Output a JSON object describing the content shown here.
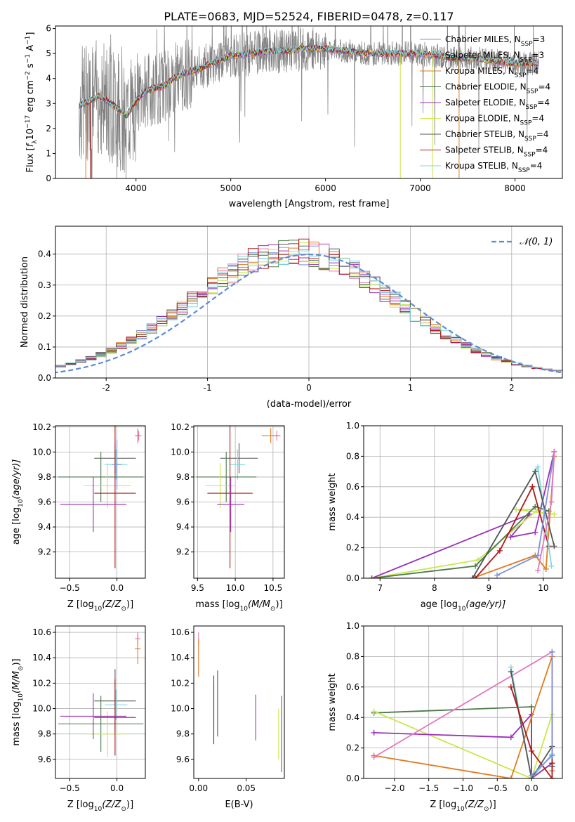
{
  "figure_title": "PLATE=0683, MJD=52524, FIBERID=0478, z=0.117",
  "colors": {
    "chabrier_miles": "#7f8fdf",
    "salpeter_miles": "#e377c2",
    "kroupa_miles": "#e07b1f",
    "chabrier_elodie": "#4a7a4a",
    "salpeter_elodie": "#9b30b8",
    "kroupa_elodie": "#c8e84a",
    "chabrier_stelib": "#555555",
    "salpeter_stelib": "#b01818",
    "kroupa_stelib": "#7fd8e0",
    "data": "#808080",
    "gauss": "#5b8bd8"
  },
  "chart_data": [
    {
      "id": "spectrum",
      "type": "line",
      "xlabel": "wavelength [Angstrom, rest frame]",
      "ylabel_main": "Flux [",
      "ylabel_f": "f",
      "ylabel_lambda": "λ",
      "ylabel_rest": "10",
      "ylabel_exp": "−17",
      "ylabel_units": " erg cm",
      "ylabel_exp2": "−2",
      "ylabel_s": " s",
      "ylabel_exp3": "−1",
      "ylabel_a": " A",
      "ylabel_exp4": "−1",
      "ylabel_end": "]",
      "xlim": [
        3150,
        8500
      ],
      "ylim": [
        0,
        6.1
      ],
      "xticks": [
        4000,
        5000,
        6000,
        7000,
        8000
      ],
      "yticks": [
        0,
        1,
        2,
        3,
        4,
        5,
        6
      ],
      "legend_position": "right",
      "legend": [
        {
          "name": "Chabrier MILES, N",
          "sub": "SSP",
          "suffix": "=3",
          "color_key": "chabrier_miles"
        },
        {
          "name": "Salpeter MILES, N",
          "sub": "SSP",
          "suffix": "=3",
          "color_key": "salpeter_miles"
        },
        {
          "name": "Kroupa MILES, N",
          "sub": "SSP",
          "suffix": "=4",
          "color_key": "kroupa_miles"
        },
        {
          "name": "Chabrier ELODIE, N",
          "sub": "SSP",
          "suffix": "=4",
          "color_key": "chabrier_elodie"
        },
        {
          "name": "Salpeter ELODIE, N",
          "sub": "SSP",
          "suffix": "=4",
          "color_key": "salpeter_elodie"
        },
        {
          "name": "Kroupa ELODIE, N",
          "sub": "SSP",
          "suffix": "=4",
          "color_key": "kroupa_elodie"
        },
        {
          "name": "Chabrier STELIB, N",
          "sub": "SSP",
          "suffix": "=4",
          "color_key": "chabrier_stelib"
        },
        {
          "name": "Salpeter STELIB, N",
          "sub": "SSP",
          "suffix": "=4",
          "color_key": "salpeter_stelib"
        },
        {
          "name": "Kroupa STELIB, N",
          "sub": "SSP",
          "suffix": "=4",
          "color_key": "kroupa_stelib"
        }
      ],
      "continuum": {
        "x": [
          3400,
          3500,
          3600,
          3700,
          3800,
          3900,
          4000,
          4100,
          4200,
          4300,
          4400,
          4500,
          4600,
          4800,
          5000,
          5200,
          5400,
          5600,
          5800,
          6000,
          6200,
          6400,
          6600,
          6800,
          7000,
          7200,
          7400,
          7600,
          7800,
          8000,
          8200
        ],
        "y": [
          2.9,
          3.1,
          3.3,
          3.1,
          2.8,
          2.5,
          3.1,
          3.5,
          3.6,
          3.7,
          4.0,
          4.2,
          4.3,
          4.6,
          4.9,
          5.0,
          5.1,
          5.1,
          5.2,
          5.2,
          5.1,
          5.0,
          5.0,
          5.0,
          5.0,
          4.9,
          4.8,
          4.8,
          4.7,
          4.6,
          4.6
        ]
      },
      "grid": false
    },
    {
      "id": "residuals",
      "type": "line",
      "xlabel": "(data-model)/error",
      "ylabel": "Normed distribution",
      "xlim": [
        -2.5,
        2.5
      ],
      "ylim": [
        0,
        0.49
      ],
      "xticks": [
        -2,
        -1,
        0,
        1,
        2
      ],
      "yticks": [
        0.0,
        0.1,
        0.2,
        0.3,
        0.4
      ],
      "legend": [
        {
          "name": "𝒩(0, 1)",
          "color_key": "gauss",
          "style": "dashed"
        }
      ],
      "legend_position": "top-right",
      "bin_width": 0.1,
      "gaussian": {
        "mu": 0,
        "sigma": 1
      },
      "grid": true
    },
    {
      "id": "age_vs_Z",
      "type": "scatter",
      "xlabel": "Z [log",
      "xlabel_sub": "10",
      "xlabel_end": "(Z/Z",
      "xlabel_sun": "⊙",
      "xlabel_close": ")]",
      "ylabel": "age  [log",
      "ylabel_sub": "10",
      "ylabel_end": "(age/yr)]",
      "xlim": [
        -0.65,
        0.3
      ],
      "ylim": [
        8.99,
        10.21
      ],
      "xticks": [
        -0.5,
        0.0
      ],
      "xtick_labels": [
        "−0.5",
        "0.0"
      ],
      "yticks": [
        9.2,
        9.4,
        9.6,
        9.8,
        10.0,
        10.2
      ],
      "grid": true,
      "points": [
        {
          "color_key": "salpeter_miles",
          "x": 0.23,
          "y": 10.13,
          "xerr": 0.03,
          "yerr": 0.04
        },
        {
          "color_key": "kroupa_miles",
          "x": 0.22,
          "y": 10.13,
          "xerr": 0.03,
          "yerr": 0.06
        },
        {
          "color_key": "chabrier_stelib",
          "x": -0.02,
          "y": 9.95,
          "xerr": 0.22,
          "yerr": 0.12
        },
        {
          "color_key": "kroupa_stelib",
          "x": -0.01,
          "y": 9.9,
          "xerr": 0.12,
          "yerr": 0.12
        },
        {
          "color_key": "chabrier_elodie",
          "x": -0.17,
          "y": 9.8,
          "xerr": 0.45,
          "yerr": 0.2
        },
        {
          "color_key": "kroupa_elodie",
          "x": -0.1,
          "y": 9.73,
          "xerr": 0.25,
          "yerr": 0.18
        },
        {
          "color_key": "salpeter_stelib",
          "x": -0.02,
          "y": 9.67,
          "xerr": 0.22,
          "yerr": 0.6
        },
        {
          "color_key": "salpeter_elodie",
          "x": -0.25,
          "y": 9.58,
          "xerr": 0.35,
          "yerr": 0.22
        },
        {
          "color_key": "chabrier_miles",
          "x": 0.0,
          "y": 9.9,
          "xerr": 0.05,
          "yerr": 0.2
        }
      ]
    },
    {
      "id": "age_vs_mass",
      "type": "scatter",
      "xlabel": "mass [log",
      "xlabel_sub": "10",
      "xlabel_end": "(M/M",
      "xlabel_sun": "⊙",
      "xlabel_close": ")]",
      "xlim": [
        9.45,
        10.65
      ],
      "ylim": [
        8.99,
        10.21
      ],
      "xticks": [
        9.5,
        10.0,
        10.5
      ],
      "xtick_labels": [
        "9.5",
        "10.0",
        "10.5"
      ],
      "yticks": [
        9.2,
        9.4,
        9.6,
        9.8,
        10.0,
        10.2
      ],
      "grid": true,
      "points": [
        {
          "color_key": "salpeter_miles",
          "x": 10.55,
          "y": 10.13,
          "xerr": 0.05,
          "yerr": 0.04
        },
        {
          "color_key": "kroupa_miles",
          "x": 10.47,
          "y": 10.13,
          "xerr": 0.12,
          "yerr": 0.06
        },
        {
          "color_key": "chabrier_stelib",
          "x": 10.05,
          "y": 9.95,
          "xerr": 0.25,
          "yerr": 0.12
        },
        {
          "color_key": "kroupa_stelib",
          "x": 10.03,
          "y": 9.9,
          "xerr": 0.1,
          "yerr": 0.12
        },
        {
          "color_key": "chabrier_elodie",
          "x": 9.88,
          "y": 9.8,
          "xerr": 0.4,
          "yerr": 0.2
        },
        {
          "color_key": "kroupa_elodie",
          "x": 9.8,
          "y": 9.73,
          "xerr": 0.2,
          "yerr": 0.18
        },
        {
          "color_key": "salpeter_stelib",
          "x": 9.93,
          "y": 9.67,
          "xerr": 0.3,
          "yerr": 0.6
        },
        {
          "color_key": "salpeter_elodie",
          "x": 9.94,
          "y": 9.58,
          "xerr": 0.18,
          "yerr": 0.22
        }
      ]
    },
    {
      "id": "weight_vs_age",
      "type": "line",
      "xlabel": "age  [log",
      "xlabel_sub": "10",
      "xlabel_end": "(age/yr)]",
      "ylabel": "mass weight",
      "xlim": [
        6.7,
        10.35
      ],
      "ylim": [
        0,
        1.0
      ],
      "xticks": [
        7,
        8,
        9,
        10
      ],
      "xtick_labels": [
        "7",
        "8",
        "9",
        "10"
      ],
      "yticks": [
        0.0,
        0.2,
        0.4,
        0.6,
        0.8,
        1.0
      ],
      "grid": true,
      "series": [
        {
          "color_key": "salpeter_elodie",
          "x": [
            6.85,
            9.75,
            9.4,
            9.85,
            10.2
          ],
          "y": [
            0.0,
            0.42,
            0.27,
            0.3,
            0.83
          ]
        },
        {
          "color_key": "kroupa_elodie",
          "x": [
            6.85,
            8.8,
            9.9,
            9.5,
            10.2
          ],
          "y": [
            0.0,
            0.12,
            0.45,
            0.45,
            0.42
          ]
        },
        {
          "color_key": "chabrier_elodie",
          "x": [
            6.85,
            8.75,
            9.85,
            10.1
          ],
          "y": [
            0.0,
            0.08,
            0.47,
            0.44
          ]
        },
        {
          "color_key": "kroupa_miles",
          "x": [
            8.7,
            9.85,
            10.05,
            10.2
          ],
          "y": [
            0.0,
            0.15,
            0.06,
            0.8
          ]
        },
        {
          "color_key": "salpeter_stelib",
          "x": [
            8.75,
            9.2,
            9.8,
            10.1
          ],
          "y": [
            0.0,
            0.18,
            0.6,
            0.21
          ]
        },
        {
          "color_key": "kroupa_stelib",
          "x": [
            8.7,
            9.9,
            10.15
          ],
          "y": [
            0.0,
            0.73,
            0.08
          ]
        },
        {
          "color_key": "chabrier_stelib",
          "x": [
            8.7,
            9.85,
            10.2
          ],
          "y": [
            0.0,
            0.7,
            0.21
          ]
        },
        {
          "color_key": "chabrier_miles",
          "x": [
            9.15,
            9.9,
            10.2
          ],
          "y": [
            0.02,
            0.15,
            0.83
          ]
        },
        {
          "color_key": "salpeter_miles",
          "x": [
            9.9,
            10.15,
            10.2
          ],
          "y": [
            0.05,
            0.5,
            0.83
          ]
        }
      ]
    },
    {
      "id": "mass_vs_Z",
      "type": "scatter",
      "xlabel": "Z [log",
      "xlabel_sub": "10",
      "xlabel_end": "(Z/Z",
      "xlabel_sun": "⊙",
      "xlabel_close": ")]",
      "ylabel": "mass [log",
      "ylabel_sub": "10",
      "ylabel_end": "(M/M",
      "ylabel_sun": "⊙",
      "ylabel_close": ")]",
      "xlim": [
        -0.65,
        0.3
      ],
      "ylim": [
        9.45,
        10.65
      ],
      "xticks": [
        -0.5,
        0.0
      ],
      "xtick_labels": [
        "−0.5",
        "0.0"
      ],
      "yticks": [
        9.6,
        9.8,
        10.0,
        10.2,
        10.4,
        10.6
      ],
      "grid": true,
      "points": [
        {
          "color_key": "salpeter_miles",
          "x": 0.22,
          "y": 10.55,
          "xerr": 0.03,
          "yerr": 0.05
        },
        {
          "color_key": "kroupa_miles",
          "x": 0.22,
          "y": 10.47,
          "xerr": 0.03,
          "yerr": 0.12
        },
        {
          "color_key": "chabrier_stelib",
          "x": -0.02,
          "y": 10.06,
          "xerr": 0.22,
          "yerr": 0.25
        },
        {
          "color_key": "kroupa_stelib",
          "x": -0.01,
          "y": 10.03,
          "xerr": 0.12,
          "yerr": 0.12
        },
        {
          "color_key": "chabrier_elodie",
          "x": -0.17,
          "y": 9.88,
          "xerr": 0.45,
          "yerr": 0.22
        },
        {
          "color_key": "kroupa_elodie",
          "x": -0.1,
          "y": 9.8,
          "xerr": 0.2,
          "yerr": 0.18
        },
        {
          "color_key": "salpeter_stelib",
          "x": -0.02,
          "y": 9.93,
          "xerr": 0.22,
          "yerr": 0.3
        },
        {
          "color_key": "salpeter_elodie",
          "x": -0.25,
          "y": 9.94,
          "xerr": 0.35,
          "yerr": 0.18
        }
      ]
    },
    {
      "id": "mass_vs_EBV",
      "type": "scatter",
      "xlabel": "E(B-V)",
      "xlim": [
        -0.005,
        0.09
      ],
      "ylim": [
        9.45,
        10.65
      ],
      "xticks": [
        0.0,
        0.05
      ],
      "xtick_labels": [
        "0.00",
        "0.05"
      ],
      "yticks": [
        9.6,
        9.8,
        10.0,
        10.2,
        10.4,
        10.6
      ],
      "grid": false,
      "points": [
        {
          "color_key": "salpeter_miles",
          "x": 0.0,
          "y": 10.55,
          "xerr": 0,
          "yerr": 0.05
        },
        {
          "color_key": "kroupa_miles",
          "x": 0.0,
          "y": 10.4,
          "xerr": 0,
          "yerr": 0.15
        },
        {
          "color_key": "kroupa_stelib",
          "x": 0.016,
          "y": 10.0,
          "xerr": 0,
          "yerr": 0.2
        },
        {
          "color_key": "salpeter_stelib",
          "x": 0.016,
          "y": 9.99,
          "xerr": 0,
          "yerr": 0.27
        },
        {
          "color_key": "chabrier_stelib",
          "x": 0.02,
          "y": 10.04,
          "xerr": 0,
          "yerr": 0.26
        },
        {
          "color_key": "salpeter_elodie",
          "x": 0.06,
          "y": 9.93,
          "xerr": 0,
          "yerr": 0.18
        },
        {
          "color_key": "kroupa_elodie",
          "x": 0.084,
          "y": 9.8,
          "xerr": 0,
          "yerr": 0.2
        },
        {
          "color_key": "chabrier_elodie",
          "x": 0.087,
          "y": 9.8,
          "xerr": 0,
          "yerr": 0.3
        }
      ]
    },
    {
      "id": "weight_vs_Z",
      "type": "line",
      "xlabel": "Z [log",
      "xlabel_sub": "10",
      "xlabel_end": "(Z/Z",
      "xlabel_sun": "⊙",
      "xlabel_close": ")]",
      "ylabel": "mass weight",
      "xlim": [
        -2.45,
        0.45
      ],
      "ylim": [
        0,
        1.0
      ],
      "xticks": [
        -2.0,
        -1.5,
        -1.0,
        -0.5,
        0.0
      ],
      "xtick_labels": [
        "−2.0",
        "−1.5",
        "−1.0",
        "−0.5",
        "0.0"
      ],
      "yticks": [
        0.0,
        0.2,
        0.4,
        0.6,
        0.8,
        1.0
      ],
      "grid": true,
      "series": [
        {
          "color_key": "chabrier_elodie",
          "x": [
            -2.3,
            0.0,
            0.0,
            0.3
          ],
          "y": [
            0.43,
            0.47,
            0.0,
            0.1
          ]
        },
        {
          "color_key": "kroupa_elodie",
          "x": [
            -2.3,
            0.0,
            0.3,
            0.3
          ],
          "y": [
            0.44,
            0.0,
            0.42,
            0.1
          ]
        },
        {
          "color_key": "salpeter_elodie",
          "x": [
            -2.3,
            -0.3,
            0.0,
            0.0,
            0.3
          ],
          "y": [
            0.3,
            0.27,
            0.42,
            0.0,
            0.1
          ]
        },
        {
          "color_key": "kroupa_miles",
          "x": [
            -2.3,
            -0.3,
            0.3,
            0.3
          ],
          "y": [
            0.15,
            0.0,
            0.8,
            0.05
          ]
        },
        {
          "color_key": "salpeter_miles",
          "x": [
            -2.3,
            0.3,
            0.3
          ],
          "y": [
            0.14,
            0.83,
            0.0
          ]
        },
        {
          "color_key": "kroupa_stelib",
          "x": [
            -0.3,
            0.0,
            0.3,
            0.3
          ],
          "y": [
            0.73,
            0.0,
            0.16,
            0.08
          ]
        },
        {
          "color_key": "chabrier_stelib",
          "x": [
            -0.3,
            0.0,
            0.3,
            0.3
          ],
          "y": [
            0.7,
            0.0,
            0.21,
            0.08
          ]
        },
        {
          "color_key": "salpeter_stelib",
          "x": [
            -0.3,
            0.0,
            0.3,
            0.3
          ],
          "y": [
            0.6,
            0.18,
            0.0,
            0.1
          ]
        },
        {
          "color_key": "chabrier_miles",
          "x": [
            0.0,
            0.3,
            0.3
          ],
          "y": [
            0.02,
            0.15,
            0.83
          ]
        }
      ]
    }
  ]
}
